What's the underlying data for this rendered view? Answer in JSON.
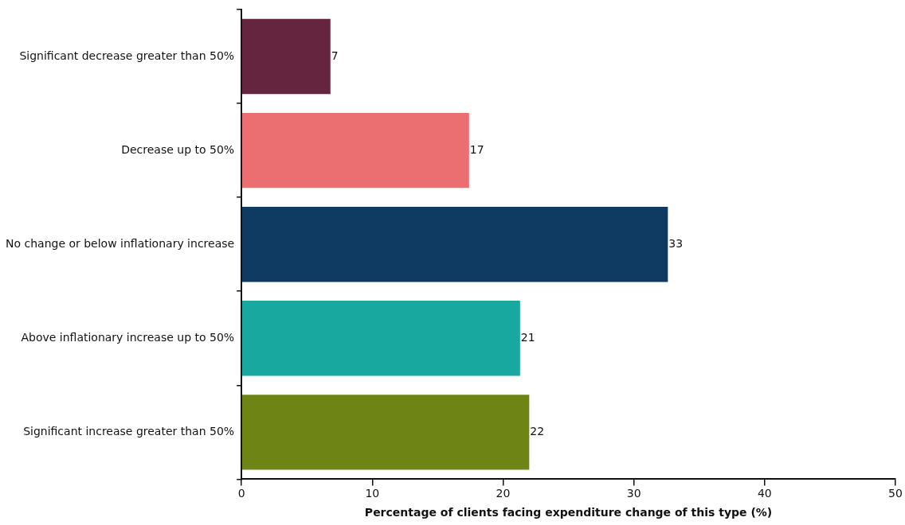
{
  "chart_data": {
    "type": "bar",
    "orientation": "horizontal",
    "xlabel": "Percentage of clients facing expenditure change of this type (%)",
    "categories": [
      "Significant decrease greater than 50%",
      "Decrease up to 50%",
      "No change or below inflationary increase",
      "Above inflationary increase up to 50%",
      "Significant increase greater than 50%"
    ],
    "values": [
      6.8,
      17.4,
      32.6,
      21.3,
      22.0
    ],
    "value_labels": [
      "7",
      "17",
      "33",
      "21",
      "22"
    ],
    "colors": [
      "#65253f",
      "#eb6e70",
      "#0f3b63",
      "#19a89f",
      "#6e8515"
    ],
    "xlim": [
      0,
      50
    ],
    "xticks": [
      0,
      10,
      20,
      30,
      40,
      50
    ],
    "grid": false,
    "legend": false
  }
}
